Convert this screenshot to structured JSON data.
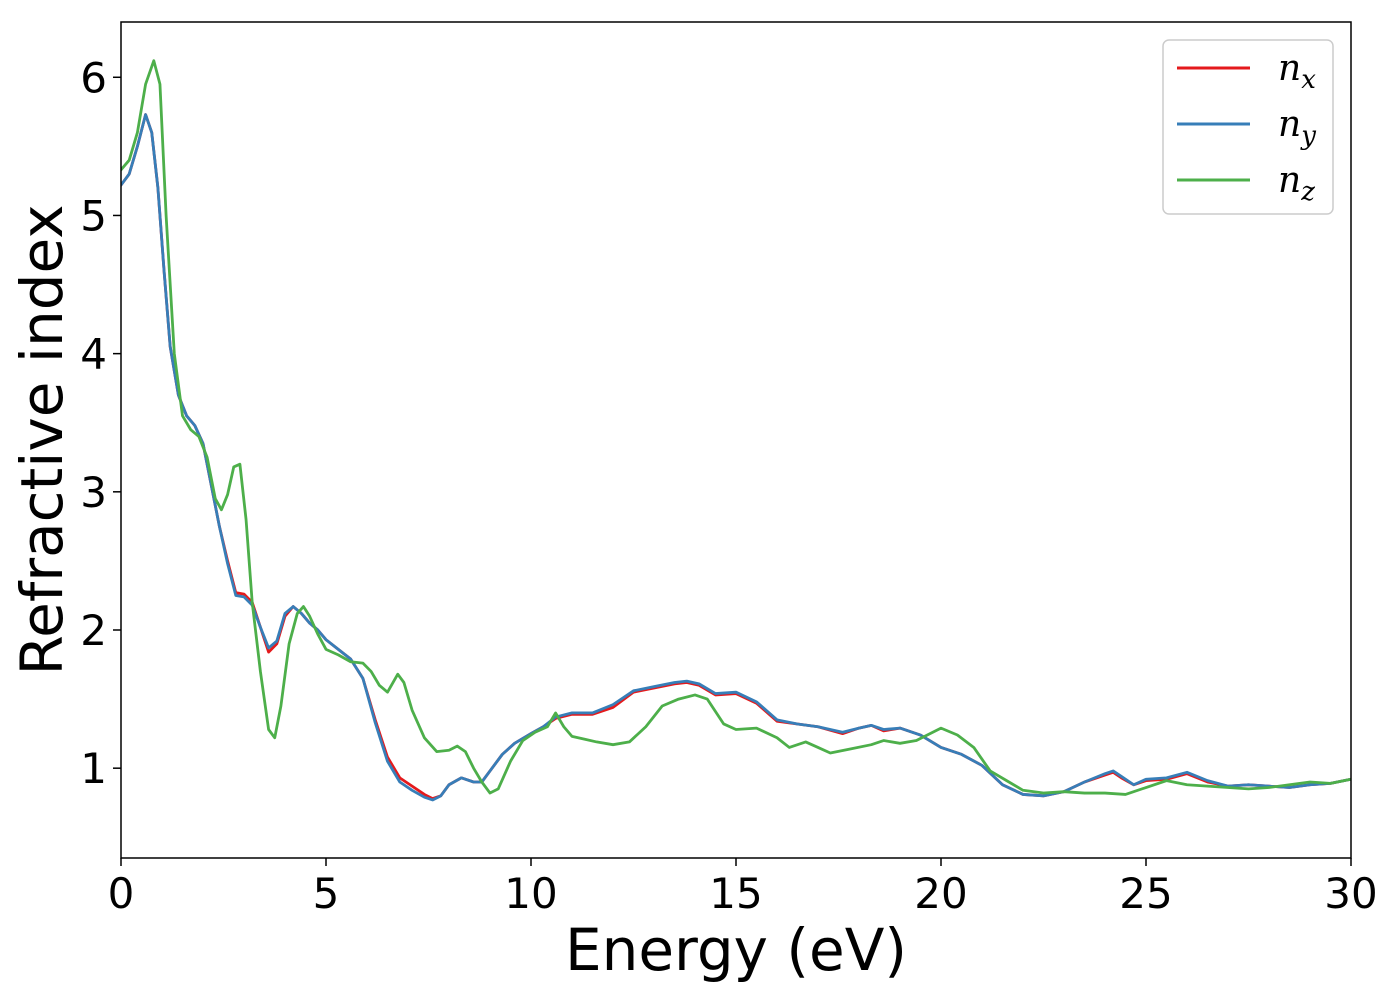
{
  "chart_data": {
    "type": "line",
    "title": "",
    "xlabel": "Energy (eV)",
    "ylabel": "Refractive index",
    "xlim": [
      0,
      30
    ],
    "ylim": [
      0.35,
      6.4
    ],
    "xticks": [
      0,
      5,
      10,
      15,
      20,
      25,
      30
    ],
    "yticks": [
      1,
      2,
      3,
      4,
      5,
      6
    ],
    "grid": false,
    "legend_position": "top-right",
    "series": [
      {
        "name": "n_x",
        "label_base": "n",
        "label_sub": "x",
        "color": "#e41a1c",
        "points": [
          [
            0,
            5.22
          ],
          [
            0.2,
            5.3
          ],
          [
            0.4,
            5.5
          ],
          [
            0.6,
            5.73
          ],
          [
            0.75,
            5.6
          ],
          [
            0.9,
            5.2
          ],
          [
            1.05,
            4.6
          ],
          [
            1.2,
            4.05
          ],
          [
            1.4,
            3.7
          ],
          [
            1.6,
            3.55
          ],
          [
            1.8,
            3.48
          ],
          [
            2.0,
            3.35
          ],
          [
            2.2,
            3.05
          ],
          [
            2.4,
            2.75
          ],
          [
            2.6,
            2.5
          ],
          [
            2.8,
            2.27
          ],
          [
            3.0,
            2.26
          ],
          [
            3.2,
            2.2
          ],
          [
            3.4,
            2.02
          ],
          [
            3.6,
            1.84
          ],
          [
            3.8,
            1.9
          ],
          [
            4.0,
            2.1
          ],
          [
            4.2,
            2.17
          ],
          [
            4.4,
            2.12
          ],
          [
            4.6,
            2.05
          ],
          [
            4.8,
            2.0
          ],
          [
            5.0,
            1.93
          ],
          [
            5.3,
            1.86
          ],
          [
            5.6,
            1.79
          ],
          [
            5.9,
            1.65
          ],
          [
            6.2,
            1.35
          ],
          [
            6.5,
            1.08
          ],
          [
            6.8,
            0.93
          ],
          [
            7.1,
            0.87
          ],
          [
            7.4,
            0.81
          ],
          [
            7.6,
            0.78
          ],
          [
            7.8,
            0.8
          ],
          [
            8.0,
            0.88
          ],
          [
            8.3,
            0.93
          ],
          [
            8.6,
            0.9
          ],
          [
            8.8,
            0.9
          ],
          [
            9.0,
            0.98
          ],
          [
            9.3,
            1.1
          ],
          [
            9.6,
            1.18
          ],
          [
            10.0,
            1.25
          ],
          [
            10.3,
            1.3
          ],
          [
            10.6,
            1.36
          ],
          [
            11.0,
            1.39
          ],
          [
            11.5,
            1.39
          ],
          [
            12.0,
            1.44
          ],
          [
            12.5,
            1.55
          ],
          [
            13.0,
            1.58
          ],
          [
            13.5,
            1.61
          ],
          [
            13.8,
            1.62
          ],
          [
            14.1,
            1.6
          ],
          [
            14.5,
            1.53
          ],
          [
            15.0,
            1.54
          ],
          [
            15.5,
            1.47
          ],
          [
            16.0,
            1.34
          ],
          [
            16.5,
            1.32
          ],
          [
            17.0,
            1.3
          ],
          [
            17.6,
            1.25
          ],
          [
            18.0,
            1.29
          ],
          [
            18.3,
            1.31
          ],
          [
            18.6,
            1.27
          ],
          [
            19.0,
            1.29
          ],
          [
            19.5,
            1.24
          ],
          [
            20.0,
            1.15
          ],
          [
            20.5,
            1.1
          ],
          [
            21.0,
            1.02
          ],
          [
            21.5,
            0.88
          ],
          [
            22.0,
            0.81
          ],
          [
            22.5,
            0.8
          ],
          [
            23.0,
            0.83
          ],
          [
            23.5,
            0.9
          ],
          [
            24.0,
            0.95
          ],
          [
            24.2,
            0.97
          ],
          [
            24.4,
            0.93
          ],
          [
            24.7,
            0.88
          ],
          [
            25.0,
            0.91
          ],
          [
            25.5,
            0.92
          ],
          [
            26.0,
            0.96
          ],
          [
            26.5,
            0.9
          ],
          [
            27.0,
            0.87
          ],
          [
            27.5,
            0.88
          ],
          [
            28.0,
            0.87
          ],
          [
            28.5,
            0.86
          ],
          [
            29.0,
            0.88
          ],
          [
            29.5,
            0.89
          ],
          [
            30.0,
            0.92
          ]
        ]
      },
      {
        "name": "n_y",
        "label_base": "n",
        "label_sub": "y",
        "color": "#377eb8",
        "points": [
          [
            0,
            5.22
          ],
          [
            0.2,
            5.3
          ],
          [
            0.4,
            5.5
          ],
          [
            0.6,
            5.73
          ],
          [
            0.75,
            5.6
          ],
          [
            0.9,
            5.2
          ],
          [
            1.05,
            4.6
          ],
          [
            1.2,
            4.05
          ],
          [
            1.4,
            3.7
          ],
          [
            1.6,
            3.55
          ],
          [
            1.8,
            3.48
          ],
          [
            2.0,
            3.35
          ],
          [
            2.2,
            3.05
          ],
          [
            2.4,
            2.75
          ],
          [
            2.6,
            2.48
          ],
          [
            2.8,
            2.25
          ],
          [
            3.0,
            2.24
          ],
          [
            3.2,
            2.18
          ],
          [
            3.4,
            2.02
          ],
          [
            3.6,
            1.87
          ],
          [
            3.8,
            1.92
          ],
          [
            4.0,
            2.12
          ],
          [
            4.2,
            2.17
          ],
          [
            4.4,
            2.12
          ],
          [
            4.6,
            2.05
          ],
          [
            4.8,
            2.0
          ],
          [
            5.0,
            1.93
          ],
          [
            5.3,
            1.86
          ],
          [
            5.6,
            1.79
          ],
          [
            5.9,
            1.65
          ],
          [
            6.2,
            1.33
          ],
          [
            6.5,
            1.05
          ],
          [
            6.8,
            0.9
          ],
          [
            7.1,
            0.84
          ],
          [
            7.4,
            0.79
          ],
          [
            7.6,
            0.77
          ],
          [
            7.8,
            0.8
          ],
          [
            8.0,
            0.88
          ],
          [
            8.3,
            0.93
          ],
          [
            8.6,
            0.9
          ],
          [
            8.8,
            0.9
          ],
          [
            9.0,
            0.98
          ],
          [
            9.3,
            1.1
          ],
          [
            9.6,
            1.18
          ],
          [
            10.0,
            1.25
          ],
          [
            10.3,
            1.3
          ],
          [
            10.6,
            1.37
          ],
          [
            11.0,
            1.4
          ],
          [
            11.5,
            1.4
          ],
          [
            12.0,
            1.46
          ],
          [
            12.5,
            1.56
          ],
          [
            13.0,
            1.59
          ],
          [
            13.5,
            1.62
          ],
          [
            13.8,
            1.63
          ],
          [
            14.1,
            1.61
          ],
          [
            14.5,
            1.54
          ],
          [
            15.0,
            1.55
          ],
          [
            15.5,
            1.48
          ],
          [
            16.0,
            1.35
          ],
          [
            16.5,
            1.32
          ],
          [
            17.0,
            1.3
          ],
          [
            17.6,
            1.26
          ],
          [
            18.0,
            1.29
          ],
          [
            18.3,
            1.31
          ],
          [
            18.6,
            1.28
          ],
          [
            19.0,
            1.29
          ],
          [
            19.5,
            1.24
          ],
          [
            20.0,
            1.15
          ],
          [
            20.5,
            1.1
          ],
          [
            21.0,
            1.02
          ],
          [
            21.5,
            0.88
          ],
          [
            22.0,
            0.81
          ],
          [
            22.5,
            0.8
          ],
          [
            23.0,
            0.83
          ],
          [
            23.5,
            0.9
          ],
          [
            24.0,
            0.96
          ],
          [
            24.2,
            0.98
          ],
          [
            24.4,
            0.94
          ],
          [
            24.7,
            0.88
          ],
          [
            25.0,
            0.92
          ],
          [
            25.5,
            0.93
          ],
          [
            26.0,
            0.97
          ],
          [
            26.5,
            0.91
          ],
          [
            27.0,
            0.87
          ],
          [
            27.5,
            0.88
          ],
          [
            28.0,
            0.87
          ],
          [
            28.5,
            0.86
          ],
          [
            29.0,
            0.88
          ],
          [
            29.5,
            0.89
          ],
          [
            30.0,
            0.92
          ]
        ]
      },
      {
        "name": "n_z",
        "label_base": "n",
        "label_sub": "z",
        "color": "#4daf4a",
        "points": [
          [
            0,
            5.33
          ],
          [
            0.2,
            5.4
          ],
          [
            0.4,
            5.6
          ],
          [
            0.6,
            5.95
          ],
          [
            0.8,
            6.12
          ],
          [
            0.95,
            5.95
          ],
          [
            1.1,
            5.0
          ],
          [
            1.3,
            4.0
          ],
          [
            1.5,
            3.55
          ],
          [
            1.7,
            3.45
          ],
          [
            1.9,
            3.4
          ],
          [
            2.1,
            3.25
          ],
          [
            2.3,
            2.95
          ],
          [
            2.45,
            2.87
          ],
          [
            2.6,
            2.98
          ],
          [
            2.75,
            3.18
          ],
          [
            2.9,
            3.2
          ],
          [
            3.05,
            2.8
          ],
          [
            3.2,
            2.2
          ],
          [
            3.4,
            1.7
          ],
          [
            3.6,
            1.28
          ],
          [
            3.75,
            1.22
          ],
          [
            3.9,
            1.45
          ],
          [
            4.1,
            1.9
          ],
          [
            4.3,
            2.12
          ],
          [
            4.45,
            2.17
          ],
          [
            4.6,
            2.1
          ],
          [
            4.8,
            1.97
          ],
          [
            5.0,
            1.86
          ],
          [
            5.3,
            1.82
          ],
          [
            5.6,
            1.77
          ],
          [
            5.9,
            1.76
          ],
          [
            6.1,
            1.7
          ],
          [
            6.3,
            1.6
          ],
          [
            6.5,
            1.55
          ],
          [
            6.75,
            1.68
          ],
          [
            6.9,
            1.62
          ],
          [
            7.1,
            1.42
          ],
          [
            7.4,
            1.22
          ],
          [
            7.7,
            1.12
          ],
          [
            8.0,
            1.13
          ],
          [
            8.2,
            1.16
          ],
          [
            8.4,
            1.12
          ],
          [
            8.6,
            1.0
          ],
          [
            8.8,
            0.9
          ],
          [
            9.0,
            0.82
          ],
          [
            9.2,
            0.85
          ],
          [
            9.5,
            1.05
          ],
          [
            9.8,
            1.2
          ],
          [
            10.1,
            1.26
          ],
          [
            10.4,
            1.3
          ],
          [
            10.6,
            1.4
          ],
          [
            10.8,
            1.3
          ],
          [
            11.0,
            1.23
          ],
          [
            11.3,
            1.21
          ],
          [
            11.6,
            1.19
          ],
          [
            12.0,
            1.17
          ],
          [
            12.4,
            1.19
          ],
          [
            12.8,
            1.3
          ],
          [
            13.2,
            1.45
          ],
          [
            13.6,
            1.5
          ],
          [
            14.0,
            1.53
          ],
          [
            14.3,
            1.5
          ],
          [
            14.7,
            1.32
          ],
          [
            15.0,
            1.28
          ],
          [
            15.5,
            1.29
          ],
          [
            16.0,
            1.22
          ],
          [
            16.3,
            1.15
          ],
          [
            16.7,
            1.19
          ],
          [
            17.0,
            1.15
          ],
          [
            17.3,
            1.11
          ],
          [
            17.8,
            1.14
          ],
          [
            18.3,
            1.17
          ],
          [
            18.6,
            1.2
          ],
          [
            19.0,
            1.18
          ],
          [
            19.4,
            1.2
          ],
          [
            19.8,
            1.26
          ],
          [
            20.0,
            1.29
          ],
          [
            20.4,
            1.24
          ],
          [
            20.8,
            1.15
          ],
          [
            21.2,
            0.98
          ],
          [
            21.6,
            0.91
          ],
          [
            22.0,
            0.84
          ],
          [
            22.5,
            0.82
          ],
          [
            23.0,
            0.83
          ],
          [
            23.5,
            0.82
          ],
          [
            24.0,
            0.82
          ],
          [
            24.5,
            0.81
          ],
          [
            25.0,
            0.86
          ],
          [
            25.5,
            0.91
          ],
          [
            26.0,
            0.88
          ],
          [
            26.5,
            0.87
          ],
          [
            27.0,
            0.86
          ],
          [
            27.5,
            0.85
          ],
          [
            28.0,
            0.86
          ],
          [
            28.5,
            0.88
          ],
          [
            29.0,
            0.9
          ],
          [
            29.5,
            0.89
          ],
          [
            30.0,
            0.92
          ]
        ]
      }
    ]
  }
}
